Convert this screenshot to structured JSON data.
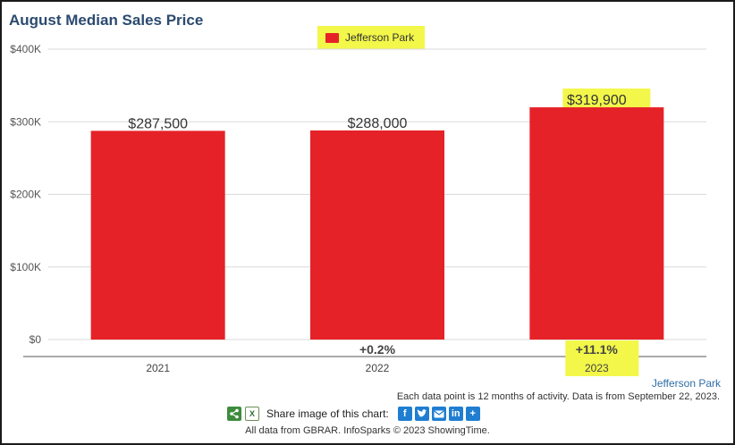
{
  "title": "August Median Sales Price",
  "legend": {
    "label": "Jefferson Park",
    "color": "#e52228",
    "highlight": "#f2f74a"
  },
  "chart_data": {
    "type": "bar",
    "categories": [
      "2021",
      "2022",
      "2023"
    ],
    "series": [
      {
        "name": "Jefferson Park",
        "values": [
          287500,
          288000,
          319900
        ]
      }
    ],
    "value_labels": [
      "$287,500",
      "$288,000",
      "$319,900"
    ],
    "change_labels": [
      "",
      "+0.2%",
      "+11.1%"
    ],
    "highlighted": [
      false,
      false,
      true
    ],
    "yticks": [
      {
        "value": 0,
        "label": "$0"
      },
      {
        "value": 100000,
        "label": "$100K"
      },
      {
        "value": 200000,
        "label": "$200K"
      },
      {
        "value": 300000,
        "label": "$300K"
      },
      {
        "value": 400000,
        "label": "$400K"
      }
    ],
    "ylim": [
      0,
      400000
    ],
    "grid": true,
    "legend_position": "top-center",
    "bar_color": "#e52228",
    "highlight_color": "#f2f74a"
  },
  "footer": {
    "source_link": "Jefferson Park",
    "note": "Each data point is 12 months of activity. Data is from September 22, 2023.",
    "share_label": "Share image of this chart:",
    "copyright": "All data from GBRAR. InfoSparks © 2023 ShowingTime.",
    "icons": [
      "share-icon",
      "excel-icon",
      "facebook-icon",
      "twitter-icon",
      "email-icon",
      "linkedin-icon",
      "plus-icon"
    ]
  }
}
